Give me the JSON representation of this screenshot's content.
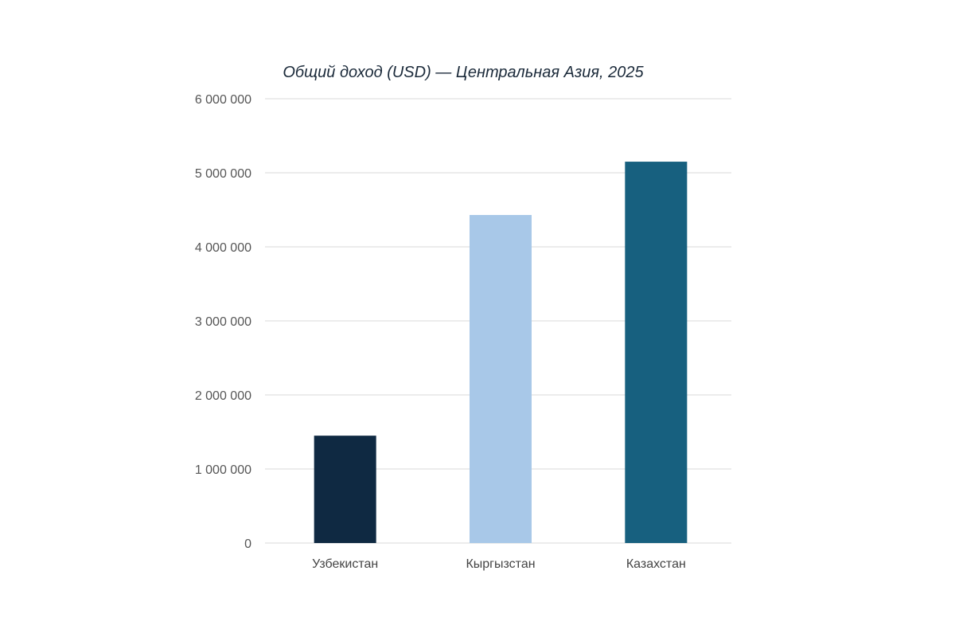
{
  "chart_data": {
    "type": "bar",
    "title": "Общий доход (USD) — Центральная Азия, 2025",
    "xlabel": "",
    "ylabel": "",
    "categories": [
      "Узбекистан",
      "Кыргызстан",
      "Казахстан"
    ],
    "values": [
      1450000,
      4430000,
      5150000
    ],
    "colors": [
      "#0f2942",
      "#a8c8e8",
      "#17607f"
    ],
    "ylim": [
      0,
      6000000
    ],
    "yticks": [
      0,
      1000000,
      2000000,
      3000000,
      4000000,
      5000000,
      6000000
    ],
    "ytick_labels": [
      "0",
      "1 000 000",
      "2 000 000",
      "3 000 000",
      "4 000 000",
      "5 000 000",
      "6 000 000"
    ],
    "grid": true,
    "legend": "none"
  }
}
